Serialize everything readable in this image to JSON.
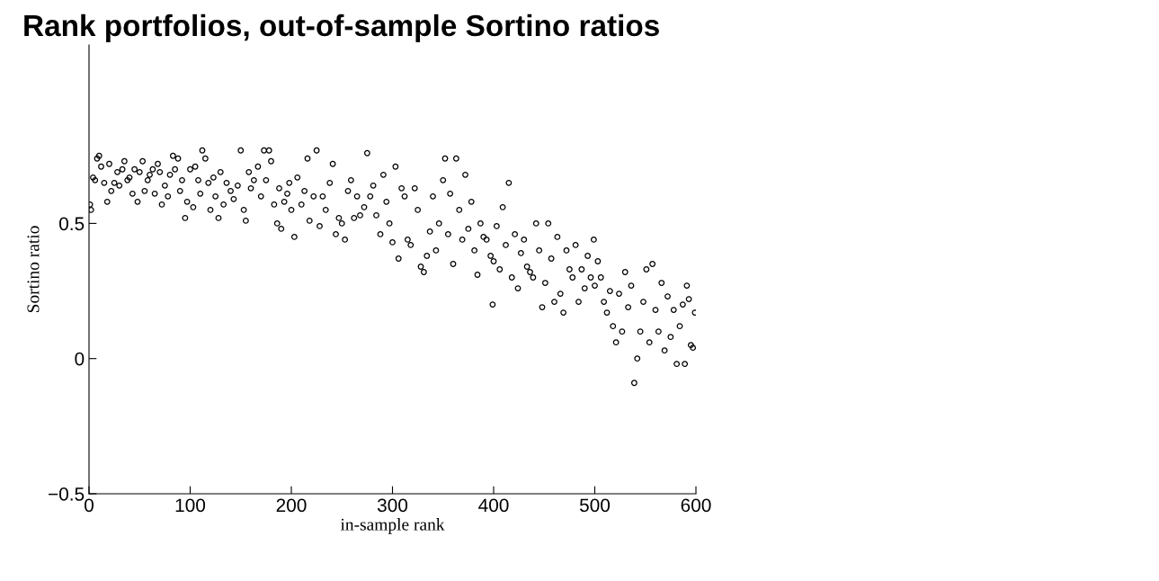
{
  "chart_data": {
    "type": "scatter",
    "title": "Rank portfolios, out-of-sample Sortino ratios",
    "xlabel": "in-sample rank",
    "ylabel": "Sortino ratio",
    "marker": "circle",
    "xlim": [
      0,
      600
    ],
    "ylim": [
      -0.5,
      1.16
    ],
    "xticks": [
      0,
      100,
      200,
      300,
      400,
      500,
      600
    ],
    "yticks": [
      {
        "value": -0.5,
        "label": "−0.5"
      },
      0,
      0.5
    ],
    "series": [
      {
        "color": "#000000",
        "x": [
          1,
          2,
          4,
          6,
          8,
          10,
          12,
          15,
          18,
          20,
          22,
          25,
          28,
          30,
          33,
          35,
          38,
          40,
          43,
          45,
          48,
          50,
          53,
          55,
          58,
          60,
          63,
          65,
          68,
          70,
          72,
          75,
          78,
          80,
          83,
          85,
          88,
          90,
          92,
          95,
          97,
          100,
          103,
          105,
          108,
          110,
          112,
          115,
          118,
          120,
          123,
          125,
          128,
          130,
          133,
          136,
          140,
          143,
          147,
          150,
          153,
          155,
          158,
          160,
          163,
          167,
          170,
          173,
          175,
          178,
          180,
          183,
          186,
          188,
          190,
          193,
          196,
          198,
          200,
          203,
          206,
          210,
          213,
          216,
          218,
          222,
          225,
          228,
          231,
          234,
          238,
          241,
          244,
          247,
          250,
          253,
          256,
          259,
          262,
          265,
          268,
          272,
          275,
          278,
          281,
          284,
          288,
          291,
          294,
          297,
          300,
          303,
          306,
          309,
          312,
          315,
          318,
          322,
          325,
          328,
          331,
          334,
          337,
          340,
          343,
          346,
          350,
          352,
          355,
          357,
          360,
          363,
          366,
          369,
          372,
          375,
          378,
          381,
          384,
          387,
          390,
          393,
          397,
          399,
          400,
          403,
          406,
          409,
          412,
          415,
          418,
          421,
          424,
          427,
          430,
          433,
          436,
          439,
          442,
          445,
          448,
          451,
          454,
          457,
          460,
          463,
          466,
          469,
          472,
          475,
          478,
          481,
          484,
          487,
          490,
          493,
          496,
          499,
          500,
          503,
          506,
          509,
          512,
          515,
          518,
          521,
          524,
          527,
          530,
          533,
          536,
          539,
          542,
          545,
          548,
          551,
          554,
          557,
          560,
          563,
          566,
          569,
          572,
          575,
          578,
          581,
          584,
          587,
          589,
          591,
          593,
          595,
          597,
          599
        ],
        "values": [
          0.57,
          0.55,
          0.67,
          0.66,
          0.74,
          0.75,
          0.71,
          0.65,
          0.58,
          0.72,
          0.62,
          0.65,
          0.69,
          0.64,
          0.7,
          0.73,
          0.66,
          0.67,
          0.61,
          0.7,
          0.58,
          0.69,
          0.73,
          0.62,
          0.66,
          0.68,
          0.7,
          0.61,
          0.72,
          0.69,
          0.57,
          0.64,
          0.6,
          0.68,
          0.75,
          0.7,
          0.74,
          0.62,
          0.66,
          0.52,
          0.58,
          0.7,
          0.56,
          0.71,
          0.66,
          0.61,
          0.77,
          0.74,
          0.65,
          0.55,
          0.67,
          0.6,
          0.52,
          0.69,
          0.57,
          0.65,
          0.62,
          0.59,
          0.64,
          0.77,
          0.55,
          0.51,
          0.69,
          0.63,
          0.66,
          0.71,
          0.6,
          0.77,
          0.66,
          0.77,
          0.73,
          0.57,
          0.5,
          0.63,
          0.48,
          0.58,
          0.61,
          0.65,
          0.55,
          0.45,
          0.67,
          0.57,
          0.62,
          0.74,
          0.51,
          0.6,
          0.77,
          0.49,
          0.6,
          0.55,
          0.65,
          0.72,
          0.46,
          0.52,
          0.5,
          0.44,
          0.62,
          0.66,
          0.52,
          0.6,
          0.53,
          0.56,
          0.76,
          0.6,
          0.64,
          0.53,
          0.46,
          0.68,
          0.58,
          0.5,
          0.43,
          0.71,
          0.37,
          0.63,
          0.6,
          0.44,
          0.42,
          0.63,
          0.55,
          0.34,
          0.32,
          0.38,
          0.47,
          0.6,
          0.4,
          0.5,
          0.66,
          0.74,
          0.46,
          0.61,
          0.35,
          0.74,
          0.55,
          0.44,
          0.68,
          0.48,
          0.58,
          0.4,
          0.31,
          0.5,
          0.45,
          0.44,
          0.38,
          0.2,
          0.36,
          0.49,
          0.33,
          0.56,
          0.42,
          0.65,
          0.3,
          0.46,
          0.26,
          0.39,
          0.44,
          0.34,
          0.32,
          0.3,
          0.5,
          0.4,
          0.19,
          0.28,
          0.5,
          0.37,
          0.21,
          0.45,
          0.24,
          0.17,
          0.4,
          0.33,
          0.3,
          0.42,
          0.21,
          0.33,
          0.26,
          0.38,
          0.3,
          0.44,
          0.27,
          0.36,
          0.3,
          0.21,
          0.17,
          0.25,
          0.12,
          0.06,
          0.24,
          0.1,
          0.32,
          0.19,
          0.27,
          -0.09,
          0.0,
          0.1,
          0.21,
          0.33,
          0.06,
          0.35,
          0.18,
          0.1,
          0.28,
          0.03,
          0.23,
          0.08,
          0.18,
          -0.02,
          0.12,
          0.2,
          -0.02,
          0.27,
          0.22,
          0.05,
          0.04,
          0.17
        ]
      }
    ]
  }
}
